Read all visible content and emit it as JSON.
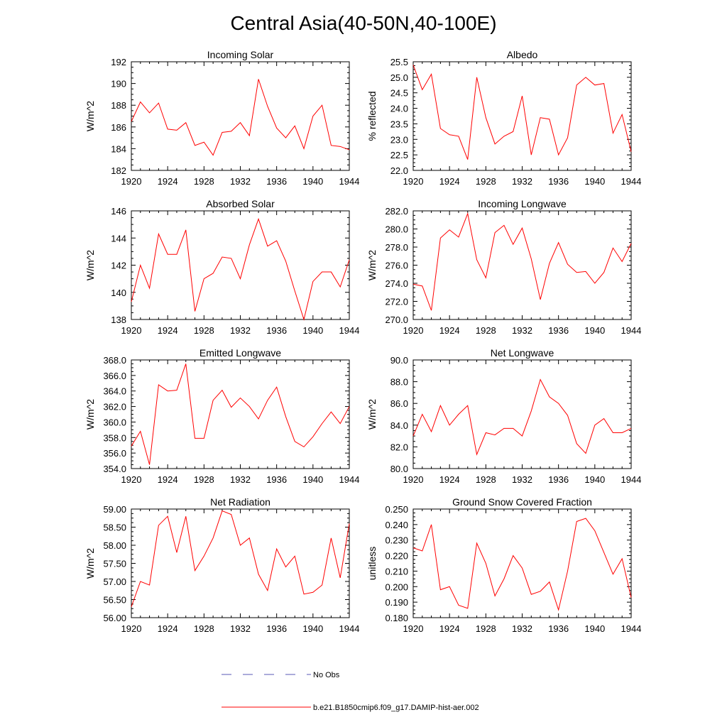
{
  "figure": {
    "title": "Central Asia(40-50N,40-100E)"
  },
  "legend": {
    "obs_label": "No Obs",
    "obs_color": "#5a5ab4",
    "model_label": "b.e21.B1850cmip6.f09_g17.DAMIP-hist-aer.002",
    "model_color": "#ff0000"
  },
  "chart_data": [
    {
      "type": "line",
      "title": "Incoming Solar",
      "xlabel": "",
      "ylabel": "W/m^2",
      "xlim": [
        1920,
        1944
      ],
      "ylim": [
        182,
        192
      ],
      "xticks": [
        1920,
        1924,
        1928,
        1932,
        1936,
        1940,
        1944
      ],
      "yticks": [
        182,
        184,
        186,
        188,
        190,
        192
      ],
      "ytick_labels": [
        "182",
        "184",
        "186",
        "188",
        "190",
        "192"
      ],
      "x": [
        1920,
        1921,
        1922,
        1923,
        1924,
        1925,
        1926,
        1927,
        1928,
        1929,
        1930,
        1931,
        1932,
        1933,
        1934,
        1935,
        1936,
        1937,
        1938,
        1939,
        1940,
        1941,
        1942,
        1943,
        1944
      ],
      "values": [
        186.5,
        188.3,
        187.3,
        188.2,
        185.8,
        185.7,
        186.4,
        184.3,
        184.6,
        183.4,
        185.5,
        185.6,
        186.4,
        185.2,
        190.4,
        187.9,
        185.9,
        185.0,
        186.1,
        184.0,
        187.0,
        188.0,
        184.3,
        184.2,
        183.9
      ]
    },
    {
      "type": "line",
      "title": "Albedo",
      "xlabel": "",
      "ylabel": "% reflected",
      "xlim": [
        1920,
        1944
      ],
      "ylim": [
        22.0,
        25.5
      ],
      "xticks": [
        1920,
        1924,
        1928,
        1932,
        1936,
        1940,
        1944
      ],
      "yticks": [
        22.0,
        22.5,
        23.0,
        23.5,
        24.0,
        24.5,
        25.0,
        25.5
      ],
      "ytick_labels": [
        "22.0",
        "22.5",
        "23.0",
        "23.5",
        "24.0",
        "24.5",
        "25.0",
        "25.5"
      ],
      "x": [
        1920,
        1921,
        1922,
        1923,
        1924,
        1925,
        1926,
        1927,
        1928,
        1929,
        1930,
        1931,
        1932,
        1933,
        1934,
        1935,
        1936,
        1937,
        1938,
        1939,
        1940,
        1941,
        1942,
        1943,
        1944
      ],
      "values": [
        25.4,
        24.6,
        25.1,
        23.35,
        23.15,
        23.1,
        22.35,
        25.0,
        23.7,
        22.85,
        23.1,
        23.25,
        24.4,
        22.5,
        23.7,
        23.65,
        22.5,
        23.05,
        24.75,
        25.0,
        24.75,
        24.8,
        23.2,
        23.8,
        22.6
      ]
    },
    {
      "type": "line",
      "title": "Absorbed Solar",
      "xlabel": "",
      "ylabel": "W/m^2",
      "xlim": [
        1920,
        1944
      ],
      "ylim": [
        138,
        146
      ],
      "xticks": [
        1920,
        1924,
        1928,
        1932,
        1936,
        1940,
        1944
      ],
      "yticks": [
        138,
        140,
        142,
        144,
        146
      ],
      "ytick_labels": [
        "138",
        "140",
        "142",
        "144",
        "146"
      ],
      "x": [
        1920,
        1921,
        1922,
        1923,
        1924,
        1925,
        1926,
        1927,
        1928,
        1929,
        1930,
        1931,
        1932,
        1933,
        1934,
        1935,
        1936,
        1937,
        1938,
        1939,
        1940,
        1941,
        1942,
        1943,
        1944
      ],
      "values": [
        139.3,
        142.0,
        140.3,
        144.3,
        142.8,
        142.8,
        144.6,
        138.6,
        141.0,
        141.4,
        142.6,
        142.5,
        141.0,
        143.5,
        145.4,
        143.4,
        143.8,
        142.3,
        140.1,
        138.0,
        140.8,
        141.5,
        141.5,
        140.4,
        142.4
      ]
    },
    {
      "type": "line",
      "title": "Incoming Longwave",
      "xlabel": "",
      "ylabel": "W/m^2",
      "xlim": [
        1920,
        1944
      ],
      "ylim": [
        270.0,
        282.0
      ],
      "xticks": [
        1920,
        1924,
        1928,
        1932,
        1936,
        1940,
        1944
      ],
      "yticks": [
        270.0,
        272.0,
        274.0,
        276.0,
        278.0,
        280.0,
        282.0
      ],
      "ytick_labels": [
        "270.0",
        "272.0",
        "274.0",
        "276.0",
        "278.0",
        "280.0",
        "282.0"
      ],
      "x": [
        1920,
        1921,
        1922,
        1923,
        1924,
        1925,
        1926,
        1927,
        1928,
        1929,
        1930,
        1931,
        1932,
        1933,
        1934,
        1935,
        1936,
        1937,
        1938,
        1939,
        1940,
        1941,
        1942,
        1943,
        1944
      ],
      "values": [
        273.9,
        273.7,
        271.0,
        279.0,
        279.9,
        279.1,
        281.7,
        276.6,
        274.6,
        279.6,
        280.4,
        278.3,
        280.1,
        276.7,
        272.2,
        276.2,
        278.5,
        276.1,
        275.2,
        275.3,
        274.0,
        275.2,
        277.9,
        276.4,
        278.4
      ]
    },
    {
      "type": "line",
      "title": "Emitted Longwave",
      "xlabel": "",
      "ylabel": "W/m^2",
      "xlim": [
        1920,
        1944
      ],
      "ylim": [
        354.0,
        368.0
      ],
      "xticks": [
        1920,
        1924,
        1928,
        1932,
        1936,
        1940,
        1944
      ],
      "yticks": [
        354.0,
        356.0,
        358.0,
        360.0,
        362.0,
        364.0,
        366.0,
        368.0
      ],
      "ytick_labels": [
        "354.0",
        "356.0",
        "358.0",
        "360.0",
        "362.0",
        "364.0",
        "366.0",
        "368.0"
      ],
      "x": [
        1920,
        1921,
        1922,
        1923,
        1924,
        1925,
        1926,
        1927,
        1928,
        1929,
        1930,
        1931,
        1932,
        1933,
        1934,
        1935,
        1936,
        1937,
        1938,
        1939,
        1940,
        1941,
        1942,
        1943,
        1944
      ],
      "values": [
        356.9,
        358.8,
        354.5,
        364.8,
        364.0,
        364.1,
        367.5,
        357.9,
        357.9,
        362.8,
        364.1,
        361.9,
        363.1,
        362.0,
        360.4,
        362.8,
        364.5,
        360.7,
        357.5,
        356.8,
        358.1,
        359.8,
        361.3,
        359.8,
        362.0
      ]
    },
    {
      "type": "line",
      "title": "Net Longwave",
      "xlabel": "",
      "ylabel": "W/m^2",
      "xlim": [
        1920,
        1944
      ],
      "ylim": [
        80.0,
        90.0
      ],
      "xticks": [
        1920,
        1924,
        1928,
        1932,
        1936,
        1940,
        1944
      ],
      "yticks": [
        80.0,
        82.0,
        84.0,
        86.0,
        88.0,
        90.0
      ],
      "ytick_labels": [
        "80.0",
        "82.0",
        "84.0",
        "86.0",
        "88.0",
        "90.0"
      ],
      "x": [
        1920,
        1921,
        1922,
        1923,
        1924,
        1925,
        1926,
        1927,
        1928,
        1929,
        1930,
        1931,
        1932,
        1933,
        1934,
        1935,
        1936,
        1937,
        1938,
        1939,
        1940,
        1941,
        1942,
        1943,
        1944
      ],
      "values": [
        83.0,
        85.0,
        83.4,
        85.8,
        84.0,
        85.0,
        85.8,
        81.3,
        83.3,
        83.1,
        83.7,
        83.7,
        83.0,
        85.3,
        88.2,
        86.6,
        86.0,
        84.9,
        82.3,
        81.4,
        84.0,
        84.6,
        83.3,
        83.3,
        83.7
      ]
    },
    {
      "type": "line",
      "title": "Net Radiation",
      "xlabel": "",
      "ylabel": "W/m^2",
      "xlim": [
        1920,
        1944
      ],
      "ylim": [
        56.0,
        59.0
      ],
      "xticks": [
        1920,
        1924,
        1928,
        1932,
        1936,
        1940,
        1944
      ],
      "yticks": [
        56.0,
        56.5,
        57.0,
        57.5,
        58.0,
        58.5,
        59.0
      ],
      "ytick_labels": [
        "56.00",
        "56.50",
        "57.00",
        "57.50",
        "58.00",
        "58.50",
        "59.00"
      ],
      "x": [
        1920,
        1921,
        1922,
        1923,
        1924,
        1925,
        1926,
        1927,
        1928,
        1929,
        1930,
        1931,
        1932,
        1933,
        1934,
        1935,
        1936,
        1937,
        1938,
        1939,
        1940,
        1941,
        1942,
        1943,
        1944
      ],
      "values": [
        56.3,
        57.0,
        56.9,
        58.55,
        58.8,
        57.8,
        58.8,
        57.3,
        57.7,
        58.2,
        58.95,
        58.85,
        58.0,
        58.2,
        57.2,
        56.75,
        57.9,
        57.4,
        57.7,
        56.65,
        56.7,
        56.9,
        58.2,
        57.1,
        58.6
      ]
    },
    {
      "type": "line",
      "title": "Ground Snow Covered Fraction",
      "xlabel": "",
      "ylabel": "unitless",
      "xlim": [
        1920,
        1944
      ],
      "ylim": [
        0.18,
        0.25
      ],
      "xticks": [
        1920,
        1924,
        1928,
        1932,
        1936,
        1940,
        1944
      ],
      "yticks": [
        0.18,
        0.19,
        0.2,
        0.21,
        0.22,
        0.23,
        0.24,
        0.25
      ],
      "ytick_labels": [
        "0.180",
        "0.190",
        "0.200",
        "0.210",
        "0.220",
        "0.230",
        "0.240",
        "0.250"
      ],
      "x": [
        1920,
        1921,
        1922,
        1923,
        1924,
        1925,
        1926,
        1927,
        1928,
        1929,
        1930,
        1931,
        1932,
        1933,
        1934,
        1935,
        1936,
        1937,
        1938,
        1939,
        1940,
        1941,
        1942,
        1943,
        1944
      ],
      "values": [
        0.225,
        0.223,
        0.24,
        0.198,
        0.2,
        0.188,
        0.186,
        0.228,
        0.215,
        0.194,
        0.205,
        0.22,
        0.212,
        0.195,
        0.197,
        0.203,
        0.185,
        0.21,
        0.242,
        0.244,
        0.236,
        0.222,
        0.208,
        0.218,
        0.193
      ]
    }
  ]
}
